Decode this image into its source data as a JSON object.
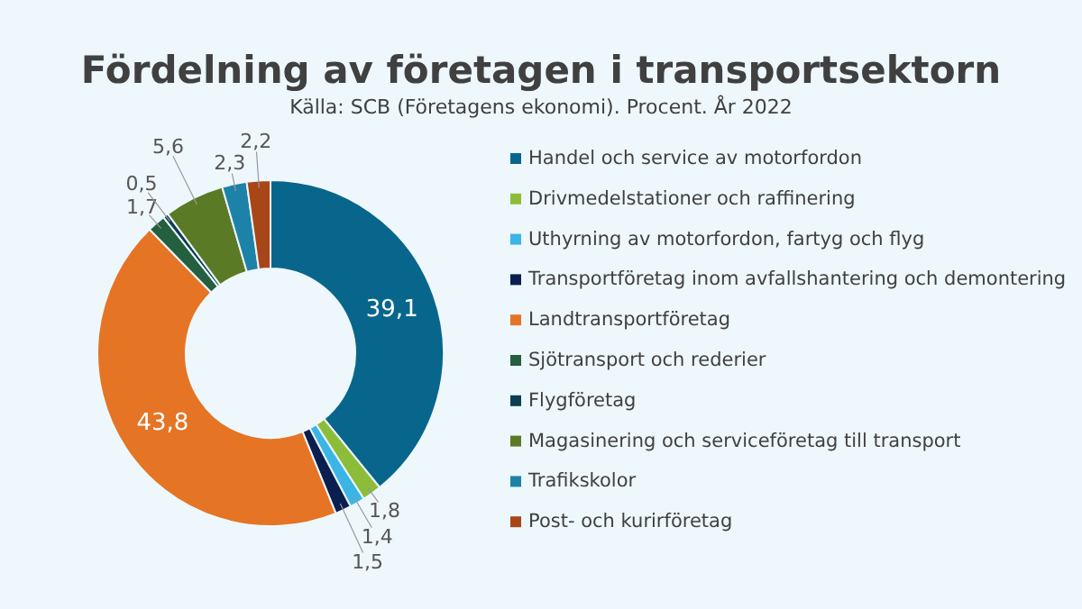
{
  "chart_data": {
    "type": "donut",
    "title": "Fördelning av företagen i transportsektorn",
    "subtitle": "Källa: SCB (Företagens ekonomi). Procent. År 2022",
    "categories": [
      "Handel och service av motorfordon",
      "Drivmedelstationer och raffinering",
      "Uthyrning av motorfordon, fartyg och flyg",
      "Transportföretag inom avfallshantering och demontering",
      "Landtransportföretag",
      "Sjötransport och rederier",
      "Flygföretag",
      "Magasinering och serviceföretag till transport",
      "Trafikskolor",
      "Post- och kurirföretag"
    ],
    "values": [
      39.1,
      1.8,
      1.4,
      1.5,
      43.8,
      1.7,
      0.5,
      5.6,
      2.3,
      2.2
    ],
    "colors": [
      "#08668c",
      "#8cbd3a",
      "#3bb5e6",
      "#0a1f4f",
      "#e57425",
      "#24603f",
      "#0c3e52",
      "#5a7a26",
      "#1d82a8",
      "#a8461a"
    ],
    "value_labels": [
      "39,1",
      "1,8",
      "1,4",
      "1,5",
      "43,8",
      "1,7",
      "0,5",
      "5,6",
      "2,3",
      "2,2"
    ],
    "legend": "right"
  }
}
